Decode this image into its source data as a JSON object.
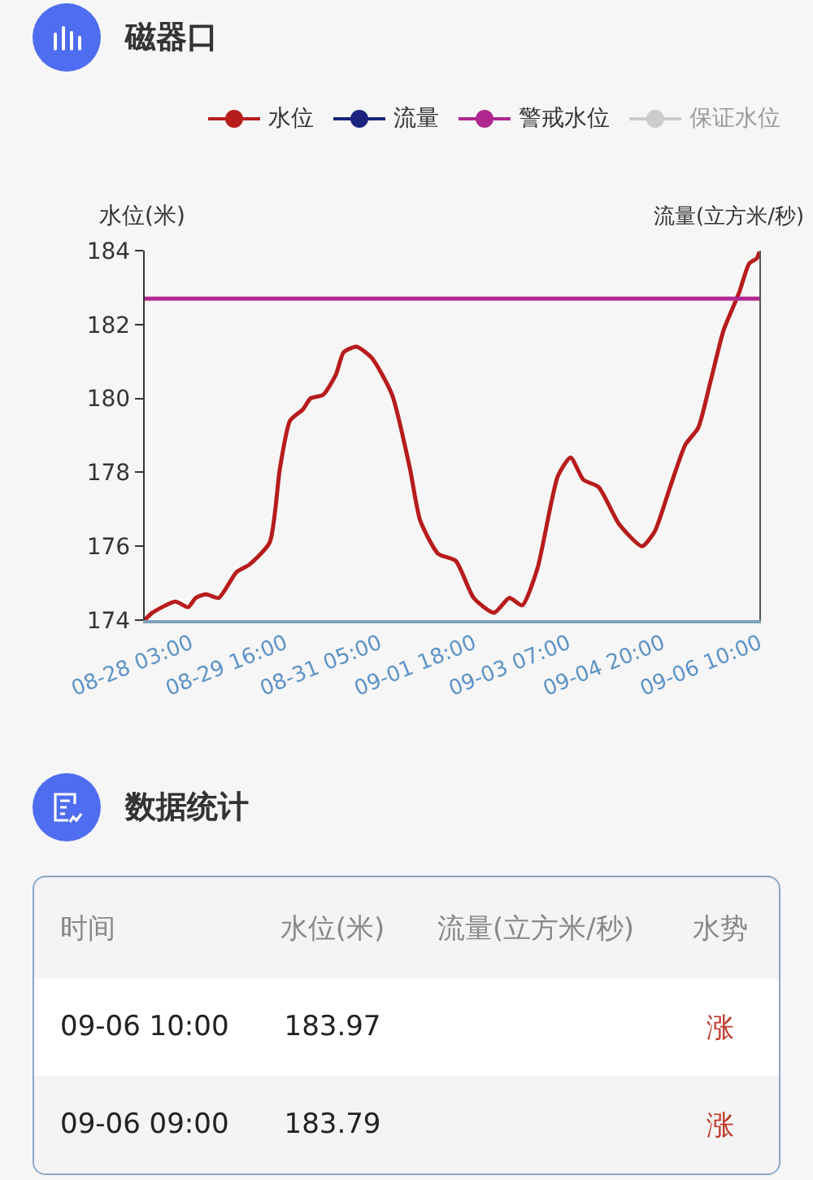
{
  "chart_data": [
    {
      "type": "line",
      "title": "磁器口",
      "ylabel": "水位(米)",
      "y2label": "流量(立方米/秒)",
      "ylim": [
        174,
        184
      ],
      "yticks": [
        174,
        176,
        178,
        180,
        182,
        184
      ],
      "xlim": [
        "--08-27T09:00",
        "--09-06T10:00"
      ],
      "xticks": [
        {
          "value": "--08-28T03:00",
          "label": "08-28 03:00"
        },
        {
          "value": "--08-29T16:00",
          "label": "08-29 16:00"
        },
        {
          "value": "--08-31T05:00",
          "label": "08-31 05:00"
        },
        {
          "value": "--09-01T18:00",
          "label": "09-01 18:00"
        },
        {
          "value": "--09-03T07:00",
          "label": "09-03 07:00"
        },
        {
          "value": "--09-04T20:00",
          "label": "09-04 20:00"
        },
        {
          "value": "--09-06T10:00",
          "label": "09-06 10:00"
        }
      ],
      "x": [
        "--08-27T09:00",
        "--08-27T12:00",
        "--08-27T21:00",
        "--08-28T02:00",
        "--08-28T05:00",
        "--08-28T09:00",
        "--08-28T14:00",
        "--08-28T21:00",
        "--08-29T02:00",
        "--08-29T10:00",
        "--08-29T14:00",
        "--08-29T18:00",
        "--08-29T23:00",
        "--08-30T02:00",
        "--08-30T07:00",
        "--08-30T12:00",
        "--08-30T15:00",
        "--08-30T20:00",
        "--08-31T02:00",
        "--08-31T10:00",
        "--08-31T17:00",
        "--08-31T21:00",
        "--09-01T04:00",
        "--09-01T11:00",
        "--09-01T18:00",
        "--09-02T02:00",
        "--09-02T08:00",
        "--09-02T13:00",
        "--09-02T19:00",
        "--09-03T03:00",
        "--09-03T08:00",
        "--09-03T13:00",
        "--09-03T19:00",
        "--09-04T03:00",
        "--09-04T12:00",
        "--09-04T17:00",
        "--09-04T23:00",
        "--09-05T05:00",
        "--09-05T10:00",
        "--09-05T15:00",
        "--09-05T20:00",
        "--09-06T02:00",
        "--09-06T06:00",
        "--09-06T09:00",
        "--09-06T10:00"
      ],
      "series": [
        {
          "name": "水位",
          "color": "#b71c1c",
          "values": [
            174.0,
            174.2,
            174.5,
            174.35,
            174.6,
            174.7,
            174.6,
            175.3,
            175.5,
            176.1,
            178.1,
            179.4,
            179.7,
            180.0,
            180.1,
            180.65,
            181.25,
            181.4,
            181.1,
            180.1,
            178.1,
            176.7,
            175.8,
            175.6,
            174.6,
            174.2,
            174.6,
            174.4,
            175.4,
            177.9,
            178.4,
            177.8,
            177.6,
            176.6,
            176.0,
            176.4,
            177.6,
            178.75,
            179.2,
            180.5,
            181.85,
            182.85,
            183.65,
            183.79,
            183.97
          ]
        },
        {
          "name": "流量",
          "color": "#1a237e",
          "axis": "y2",
          "values": [
            null,
            null,
            null,
            null,
            null,
            null,
            null,
            null,
            null,
            null,
            null,
            null,
            null,
            null,
            null,
            null,
            null,
            null,
            null,
            null,
            null,
            null,
            null,
            null,
            null,
            null,
            null,
            null,
            null,
            null,
            null,
            null,
            null,
            null,
            null,
            null,
            null,
            null,
            null,
            null,
            null,
            null,
            null,
            null,
            null
          ]
        },
        {
          "name": "保证水位",
          "color": "#cccccc",
          "values": [
            null,
            null,
            null,
            null,
            null,
            null,
            null,
            null,
            null,
            null,
            null,
            null,
            null,
            null,
            null,
            null,
            null,
            null,
            null,
            null,
            null,
            null,
            null,
            null,
            null,
            null,
            null,
            null,
            null,
            null,
            null,
            null,
            null,
            null,
            null,
            null,
            null,
            null,
            null,
            null,
            null,
            null,
            null,
            null,
            null
          ]
        }
      ],
      "ref_lines": [
        {
          "axis": "y",
          "value": 182.7,
          "label": "警戒水位",
          "color": "#b0288f"
        }
      ],
      "legend": "top",
      "marker": "none",
      "line_style": "solid",
      "grid": false
    },
    {
      "type": "other",
      "title": "数据统计",
      "categories": [
        "时间",
        "水位(米)",
        "流量(立方米/秒)",
        "水势"
      ],
      "y_categories": [
        "09-06 10:00",
        "09-06 09:00"
      ],
      "cell_labels": [
        [
          "183.97",
          null,
          "涨"
        ],
        [
          "183.79",
          null,
          "涨"
        ]
      ]
    }
  ]
}
